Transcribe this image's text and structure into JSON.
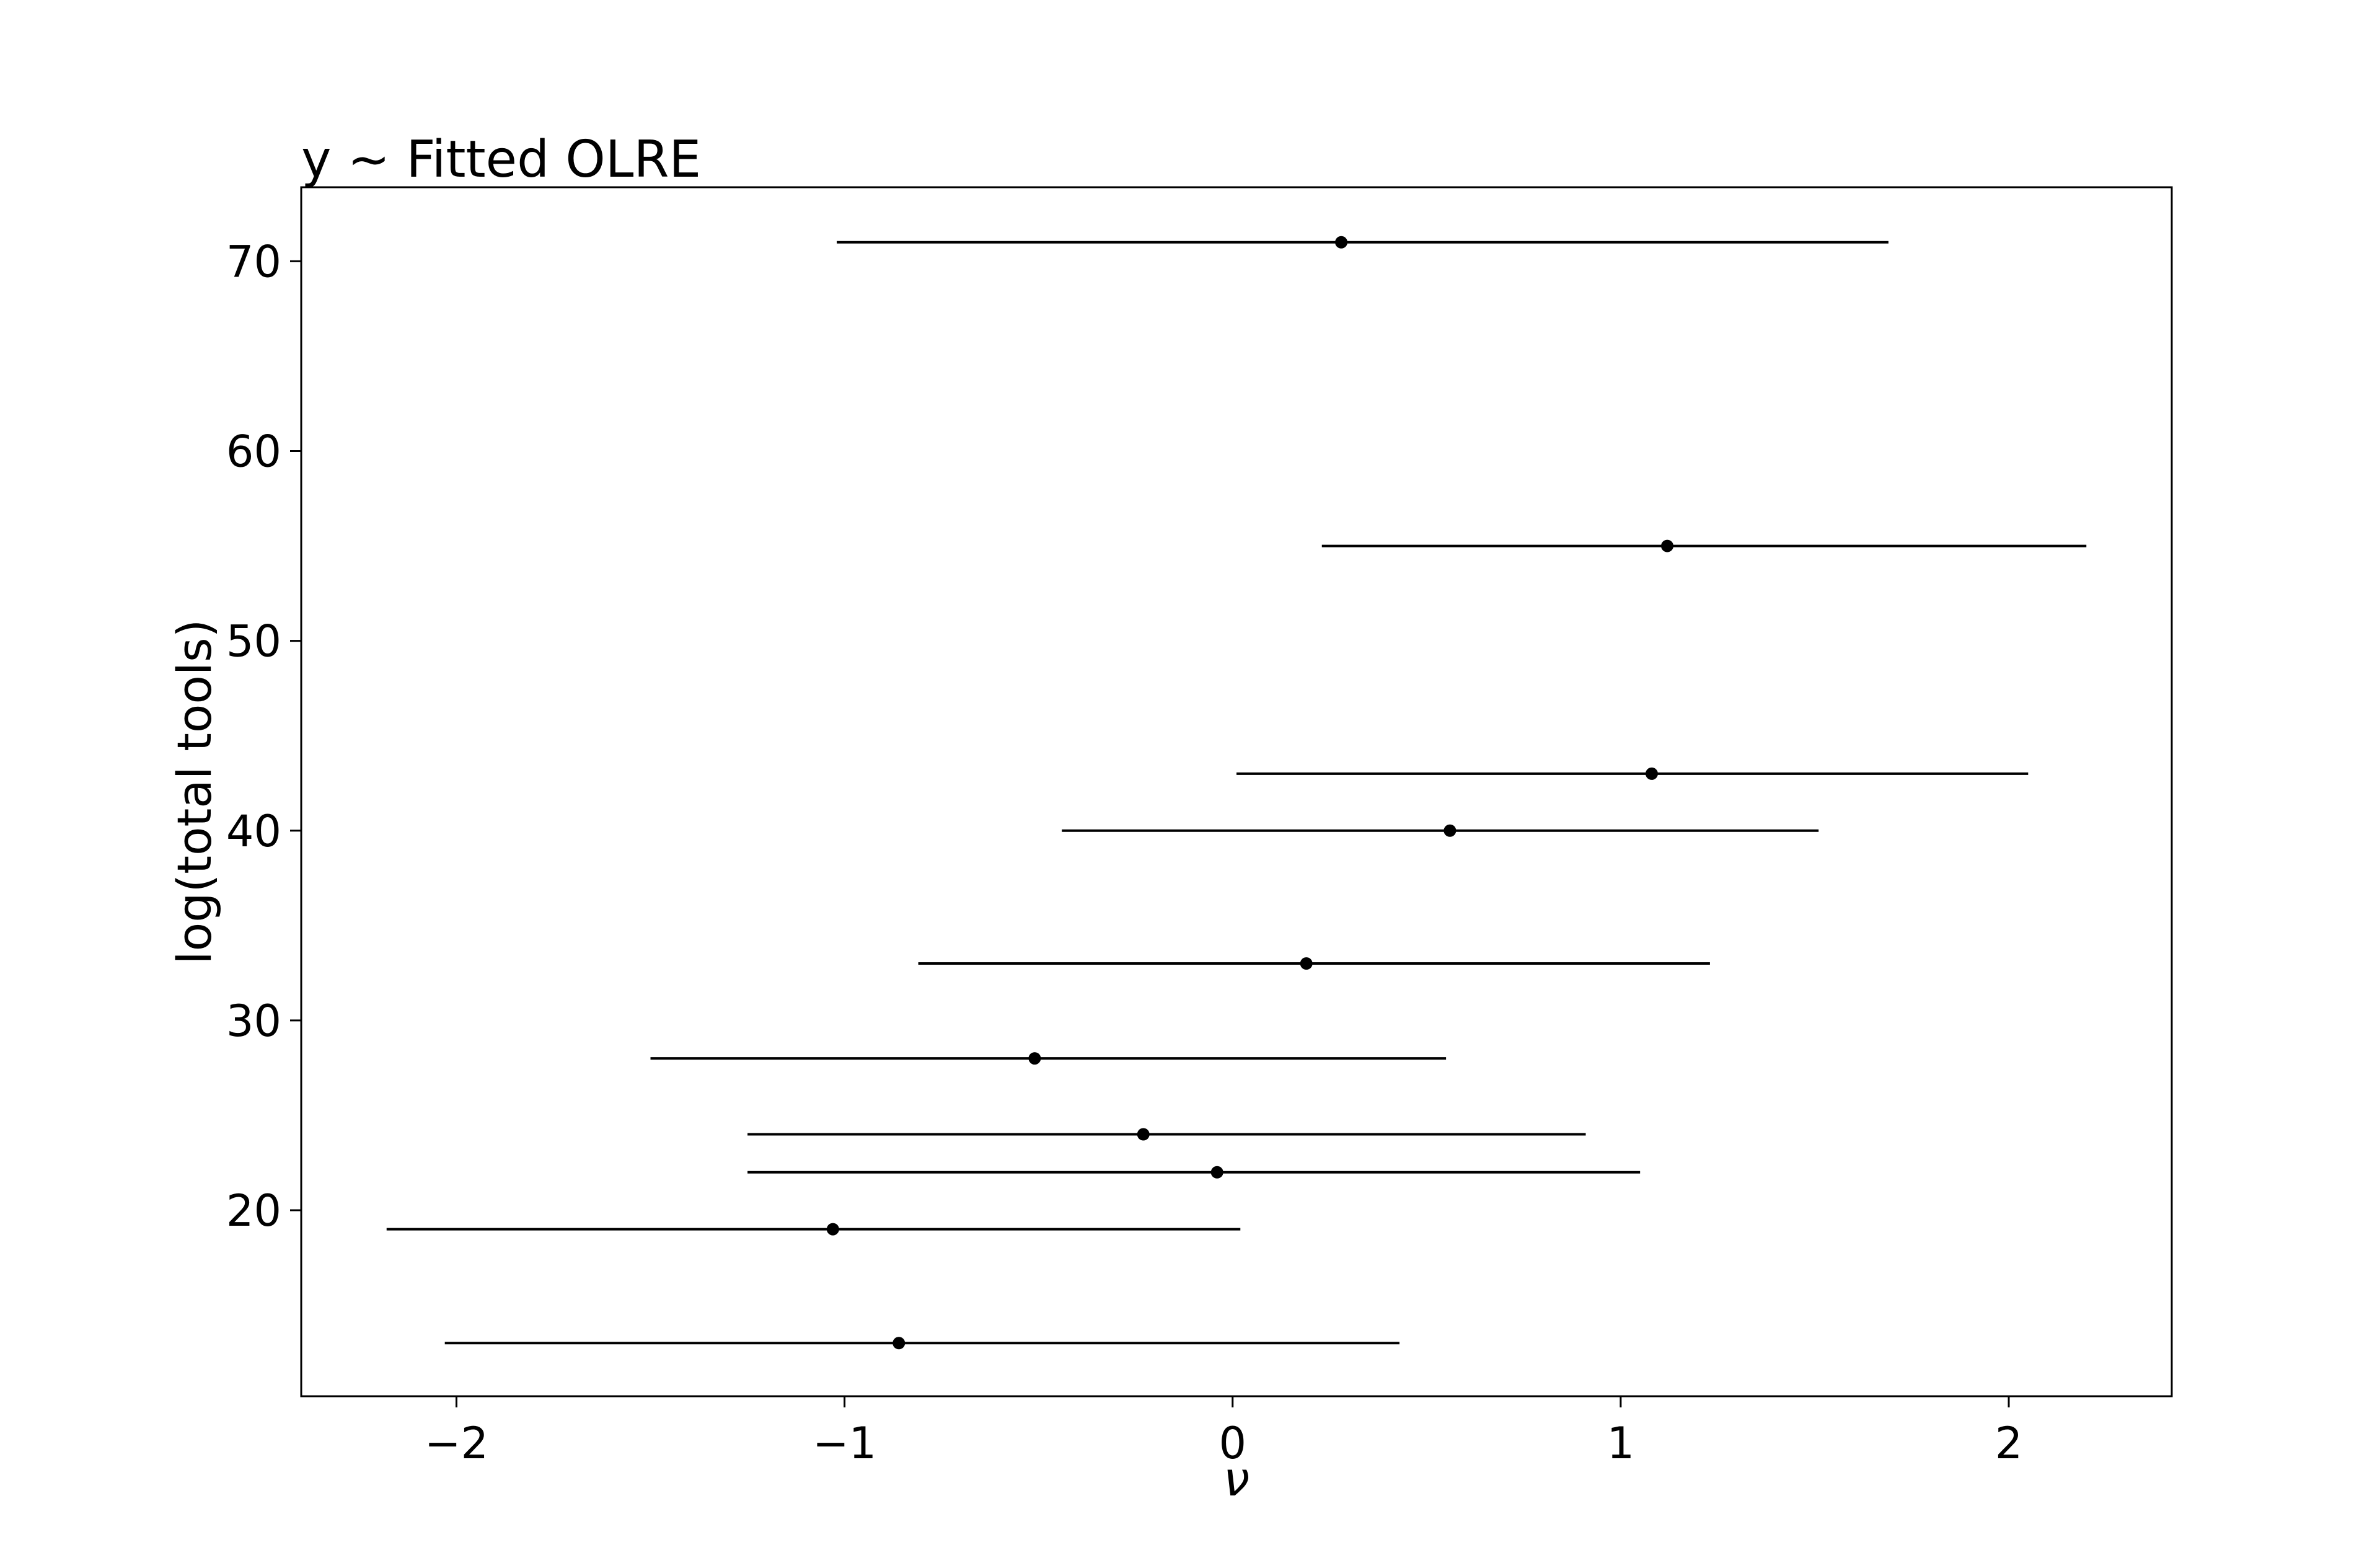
{
  "chart_data": {
    "type": "scatter",
    "title": "y ~ Fitted OLRE",
    "xlabel": "ν",
    "ylabel": "log(total tools)",
    "xlim": [
      -2.4,
      2.42
    ],
    "ylim": [
      10.2,
      73.9
    ],
    "xticks": [
      -2,
      -1,
      0,
      1,
      2
    ],
    "xtick_labels": [
      "−2",
      "−1",
      "0",
      "1",
      "2"
    ],
    "yticks": [
      20,
      30,
      40,
      50,
      60,
      70
    ],
    "ytick_labels": [
      "20",
      "30",
      "40",
      "50",
      "60",
      "70"
    ],
    "grid": false,
    "legend": "none",
    "points": [
      {
        "y": 13,
        "x": -0.86,
        "lower": -2.03,
        "upper": 0.43
      },
      {
        "y": 19,
        "x": -1.03,
        "lower": -2.18,
        "upper": 0.02
      },
      {
        "y": 22,
        "x": -0.04,
        "lower": -1.25,
        "upper": 1.05
      },
      {
        "y": 24,
        "x": -0.23,
        "lower": -1.25,
        "upper": 0.91
      },
      {
        "y": 28,
        "x": -0.51,
        "lower": -1.5,
        "upper": 0.55
      },
      {
        "y": 33,
        "x": 0.19,
        "lower": -0.81,
        "upper": 1.23
      },
      {
        "y": 40,
        "x": 0.56,
        "lower": -0.44,
        "upper": 1.51
      },
      {
        "y": 43,
        "x": 1.08,
        "lower": 0.01,
        "upper": 2.05
      },
      {
        "y": 55,
        "x": 1.12,
        "lower": 0.23,
        "upper": 2.2
      },
      {
        "y": 71,
        "x": 0.28,
        "lower": -1.02,
        "upper": 1.69
      }
    ],
    "colors": {
      "marks": "#000000",
      "axes": "#000000",
      "background": "#ffffff"
    }
  }
}
